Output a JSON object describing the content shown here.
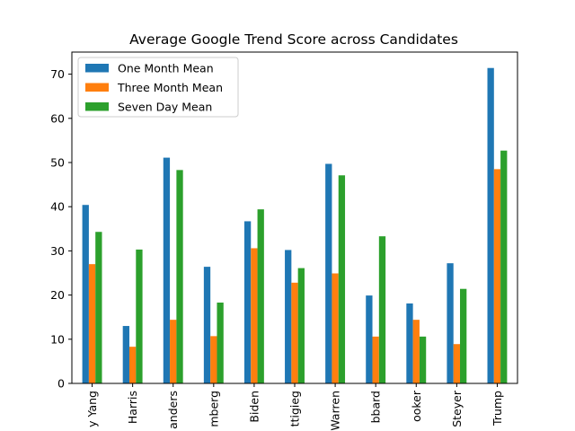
{
  "chart_data": {
    "type": "bar",
    "title": "Average Google Trend Score across Candidates",
    "xlabel": "",
    "ylabel": "",
    "ylim": [
      0,
      75
    ],
    "yticks": [
      0,
      10,
      20,
      30,
      40,
      50,
      60,
      70
    ],
    "grid": false,
    "legend_position": "top-left",
    "categories": [
      "Andrew Yang",
      "Kamala Harris",
      "Bernie Sanders",
      "Michael Bloomberg",
      "Joe Biden",
      "Pete Buttigieg",
      "Elizabeth Warren",
      "Tulsi Gabbard",
      "Cory Booker",
      "Tom Steyer",
      "Donald Trump"
    ],
    "category_labels_visible": [
      "y Yang",
      "Harris",
      "anders",
      "mberg",
      "Biden",
      "ttigieg",
      "Warren",
      "bbard",
      "ooker",
      "Steyer",
      "Trump"
    ],
    "series": [
      {
        "name": "One Month Mean",
        "color": "#1f77b4",
        "values": [
          40.4,
          13.0,
          51.1,
          26.4,
          36.7,
          30.2,
          49.7,
          19.9,
          18.1,
          27.2,
          71.4
        ]
      },
      {
        "name": "Three Month Mean",
        "color": "#ff7f0e",
        "values": [
          27.0,
          8.3,
          14.4,
          10.7,
          30.6,
          22.8,
          24.9,
          10.6,
          14.4,
          8.9,
          48.5
        ]
      },
      {
        "name": "Seven Day Mean",
        "color": "#2ca02c",
        "values": [
          34.3,
          30.3,
          48.3,
          18.3,
          39.4,
          26.1,
          47.1,
          33.3,
          10.6,
          21.4,
          52.7
        ]
      }
    ]
  }
}
